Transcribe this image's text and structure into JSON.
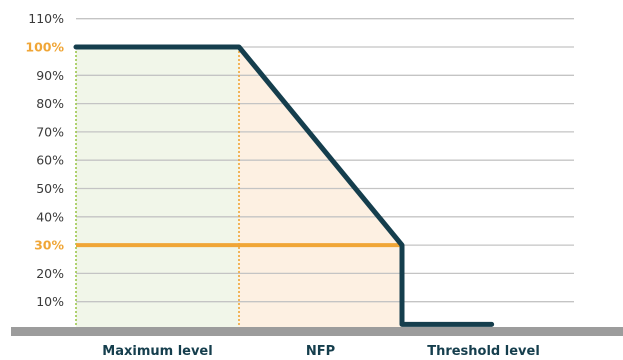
{
  "chart_data": {
    "type": "line",
    "title": "",
    "xlabel": "",
    "ylabel": "",
    "ylim": [
      0,
      110
    ],
    "y_ticks": [
      "10%",
      "20%",
      "30%",
      "40%",
      "50%",
      "60%",
      "70%",
      "80%",
      "90%",
      "100%",
      "110%"
    ],
    "highlighted_ticks": [
      "30%",
      "100%"
    ],
    "categories": [
      "Maximum level",
      "NFP",
      "Threshold level"
    ],
    "series": [
      {
        "x": [
          0,
          1,
          2,
          2,
          2.55
        ],
        "y": [
          100,
          100,
          30,
          2,
          2
        ]
      }
    ],
    "reference_line": {
      "y": 30
    },
    "regions": [
      {
        "category": "Maximum level",
        "x_range": [
          0,
          1
        ],
        "color": "#f1f6e9"
      },
      {
        "category": "NFP",
        "x_range": [
          1,
          2
        ],
        "color": "#fdf0e2"
      }
    ],
    "grid": true,
    "colors": {
      "line": "#153e4d",
      "reference": "#f0a637",
      "grid": "#c4c4c4",
      "baseline": "#9c9c9c",
      "divider_green": "#9cc74e",
      "divider_orange": "#f0a637"
    }
  }
}
